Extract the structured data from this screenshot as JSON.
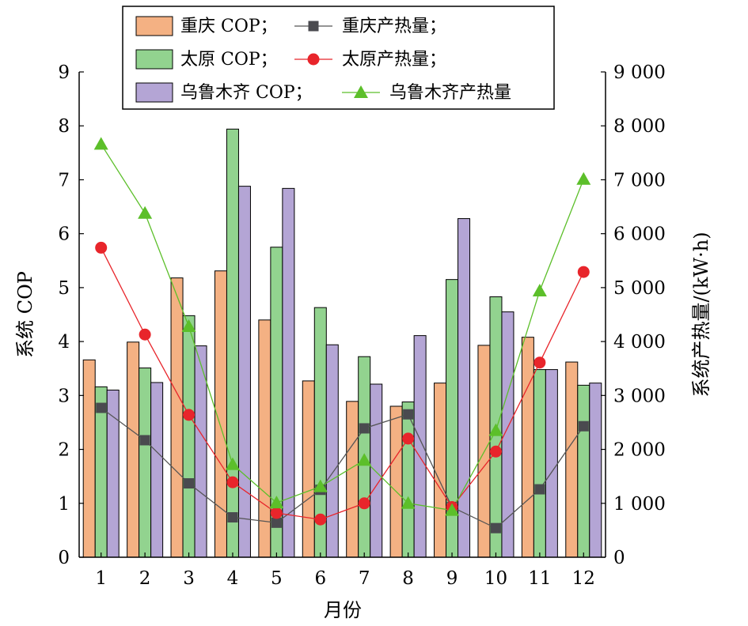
{
  "chart_data": {
    "type": "bar",
    "title": "",
    "xlabel": "月份",
    "ylabel": "系统 COP",
    "y2label": "系统产热量/(kW·h)",
    "categories": [
      "1",
      "2",
      "3",
      "4",
      "5",
      "6",
      "7",
      "8",
      "9",
      "10",
      "11",
      "12"
    ],
    "ylim": [
      0,
      9
    ],
    "y2lim": [
      0,
      9000
    ],
    "yticks": [
      "0",
      "1",
      "2",
      "3",
      "4",
      "5",
      "6",
      "7",
      "8",
      "9"
    ],
    "y2ticks": [
      "0",
      "1 000",
      "2 000",
      "3 000",
      "4 000",
      "5 000",
      "6 000",
      "7 000",
      "8 000",
      "9 000"
    ],
    "grid": false,
    "legend_position": "top",
    "bar_series": [
      {
        "name": "重庆 COP；",
        "color": "#F4B183",
        "values": [
          3.66,
          3.99,
          5.18,
          5.31,
          4.4,
          3.27,
          2.89,
          2.8,
          3.23,
          3.93,
          4.08,
          3.62
        ]
      },
      {
        "name": "太原 COP；",
        "color": "#92D38F",
        "values": [
          3.16,
          3.51,
          4.48,
          7.94,
          5.75,
          4.63,
          3.72,
          2.88,
          5.15,
          4.83,
          3.48,
          3.19
        ]
      },
      {
        "name": "乌鲁木齐 COP；",
        "color": "#B4A5D5",
        "values": [
          3.1,
          3.24,
          3.92,
          6.88,
          6.84,
          3.94,
          3.21,
          4.11,
          6.28,
          4.55,
          3.48,
          3.23
        ]
      }
    ],
    "line_series": [
      {
        "name": "重庆产热量；",
        "color": "#4A4A4F",
        "line_color": "#555555",
        "marker": "square",
        "values": [
          2770,
          2170,
          1370,
          740,
          640,
          1250,
          2390,
          2650,
          930,
          540,
          1260,
          2430
        ]
      },
      {
        "name": "太原产热量；",
        "color": "#E8252B",
        "line_color": "#E8252B",
        "marker": "circle",
        "values": [
          5740,
          4130,
          2640,
          1390,
          820,
          700,
          1000,
          2200,
          930,
          1960,
          3610,
          5290
        ]
      },
      {
        "name": "乌鲁木齐产热量",
        "color": "#5CBF2A",
        "line_color": "#5CBF2A",
        "marker": "triangle",
        "values": [
          7660,
          6380,
          4280,
          1720,
          1010,
          1310,
          1800,
          1000,
          870,
          2350,
          4940,
          7010
        ]
      }
    ]
  }
}
